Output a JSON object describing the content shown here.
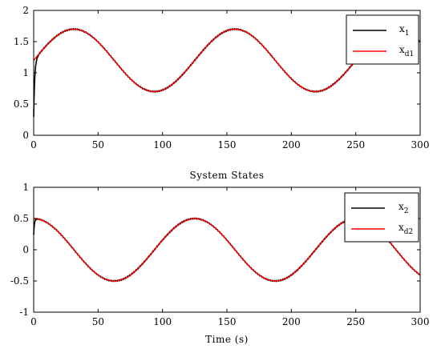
{
  "colors": {
    "x_actual": "#000000",
    "x_desired": "#ff0000"
  },
  "chart_data": [
    {
      "type": "line",
      "title": "",
      "xlabel": "",
      "ylabel": "",
      "xlim": [
        0,
        300
      ],
      "ylim": [
        0,
        2
      ],
      "xticks": [
        "0",
        "50",
        "100",
        "150",
        "200",
        "250",
        "300"
      ],
      "yticks": [
        "0",
        "0.5",
        "1",
        "1.5",
        "2"
      ],
      "grid": false,
      "legend_position": "top-right",
      "legend": [
        {
          "name": "x",
          "sub": "1",
          "color": "#000000"
        },
        {
          "name": "x",
          "sub": "d1",
          "color": "#ff0000"
        }
      ],
      "series": [
        {
          "name": "x1",
          "color": "#000000",
          "formula": "1.2 + 0.5*sin(2*pi*t/125)",
          "initial_transient": "starts near 0.3 at t=0, converges to reference by t≈3"
        },
        {
          "name": "xd1",
          "color": "#ff0000",
          "formula": "1.2 + 0.5*sin(2*pi*t/125)"
        }
      ]
    },
    {
      "type": "line",
      "title": "System States",
      "xlabel": "Time (s)",
      "ylabel": "",
      "xlim": [
        0,
        300
      ],
      "ylim": [
        -1,
        1
      ],
      "xticks": [
        "0",
        "50",
        "100",
        "150",
        "200",
        "250",
        "300"
      ],
      "yticks": [
        "-1",
        "-0.5",
        "0",
        "0.5",
        "1"
      ],
      "grid": false,
      "legend_position": "top-right",
      "legend": [
        {
          "name": "x",
          "sub": "2",
          "color": "#000000"
        },
        {
          "name": "x",
          "sub": "d2",
          "color": "#ff0000"
        }
      ],
      "series": [
        {
          "name": "x2",
          "color": "#000000",
          "formula": "0.5*cos(2*pi*t/125)",
          "initial_transient": "starts near 0.25 at t=0, converges to reference by t≈2"
        },
        {
          "name": "xd2",
          "color": "#ff0000",
          "formula": "0.5*cos(2*pi*t/125)"
        }
      ]
    }
  ]
}
